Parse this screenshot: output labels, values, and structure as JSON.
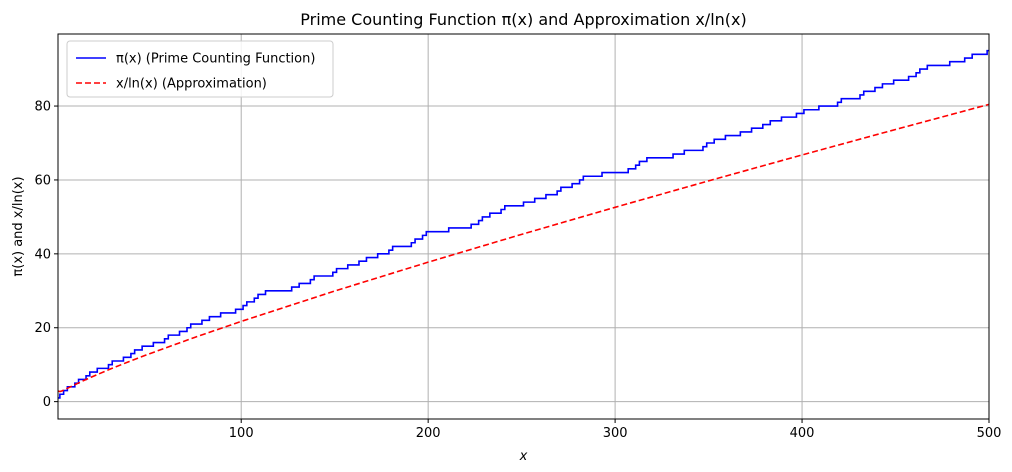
{
  "chart_data": {
    "type": "line",
    "title": "Prime Counting Function π(x) and Approximation x/ln(x)",
    "xlabel": "x",
    "ylabel": "π(x) and x/ln(x)",
    "xlim": [
      2,
      500
    ],
    "ylim": [
      -4.7,
      99.5
    ],
    "xticks": [
      100,
      200,
      300,
      400,
      500
    ],
    "yticks": [
      0,
      20,
      40,
      60,
      80
    ],
    "grid": true,
    "legend_position": "top-left",
    "primes": [
      2,
      3,
      5,
      7,
      11,
      13,
      17,
      19,
      23,
      29,
      31,
      37,
      41,
      43,
      47,
      53,
      59,
      61,
      67,
      71,
      73,
      79,
      83,
      89,
      97,
      101,
      103,
      107,
      109,
      113,
      127,
      131,
      137,
      139,
      149,
      151,
      157,
      163,
      167,
      173,
      179,
      181,
      191,
      193,
      197,
      199,
      211,
      223,
      227,
      229,
      233,
      239,
      241,
      251,
      257,
      263,
      269,
      271,
      277,
      281,
      283,
      293,
      307,
      311,
      313,
      317,
      331,
      337,
      347,
      349,
      353,
      359,
      367,
      373,
      379,
      383,
      389,
      397,
      401,
      409,
      419,
      421,
      431,
      433,
      439,
      443,
      449,
      457,
      461,
      463,
      467,
      479,
      487,
      491,
      499
    ],
    "series": [
      {
        "name": "π(x) (Prime Counting Function)",
        "color": "#0000ff",
        "style": "solid",
        "x": [
          2,
          3,
          5,
          7,
          11,
          13,
          17,
          19,
          23,
          29,
          31,
          37,
          41,
          43,
          47,
          53,
          59,
          61,
          67,
          71,
          73,
          79,
          83,
          89,
          97,
          101,
          103,
          107,
          109,
          113,
          127,
          131,
          137,
          139,
          149,
          151,
          157,
          163,
          167,
          173,
          179,
          181,
          191,
          193,
          197,
          199,
          211,
          223,
          227,
          229,
          233,
          239,
          241,
          251,
          257,
          263,
          269,
          271,
          277,
          281,
          283,
          293,
          307,
          311,
          313,
          317,
          331,
          337,
          347,
          349,
          353,
          359,
          367,
          373,
          379,
          383,
          389,
          397,
          401,
          409,
          419,
          421,
          431,
          433,
          439,
          443,
          449,
          457,
          461,
          463,
          467,
          479,
          487,
          491,
          499,
          500
        ],
        "y": [
          1,
          2,
          3,
          4,
          5,
          6,
          7,
          8,
          9,
          10,
          11,
          12,
          13,
          14,
          15,
          16,
          17,
          18,
          19,
          20,
          21,
          22,
          23,
          24,
          25,
          26,
          27,
          28,
          29,
          30,
          31,
          32,
          33,
          34,
          35,
          36,
          37,
          38,
          39,
          40,
          41,
          42,
          43,
          44,
          45,
          46,
          47,
          48,
          49,
          50,
          51,
          52,
          53,
          54,
          55,
          56,
          57,
          58,
          59,
          60,
          61,
          62,
          63,
          64,
          65,
          66,
          67,
          68,
          69,
          70,
          71,
          72,
          73,
          74,
          75,
          76,
          77,
          78,
          79,
          80,
          81,
          82,
          83,
          84,
          85,
          86,
          87,
          88,
          89,
          90,
          91,
          92,
          93,
          94,
          95,
          95
        ]
      },
      {
        "name": "x/ln(x) (Approximation)",
        "color": "#ff0000",
        "style": "dashed",
        "x": [
          2,
          3,
          4,
          5,
          6,
          8,
          10,
          15,
          20,
          30,
          40,
          50,
          75,
          100,
          150,
          200,
          250,
          300,
          350,
          400,
          450,
          500
        ],
        "y": [
          2.885,
          2.731,
          2.885,
          3.107,
          3.349,
          3.847,
          4.343,
          5.539,
          6.676,
          8.82,
          10.843,
          12.781,
          17.371,
          21.715,
          29.937,
          37.748,
          45.277,
          52.597,
          59.75,
          66.763,
          73.66,
          80.455
        ]
      }
    ]
  }
}
